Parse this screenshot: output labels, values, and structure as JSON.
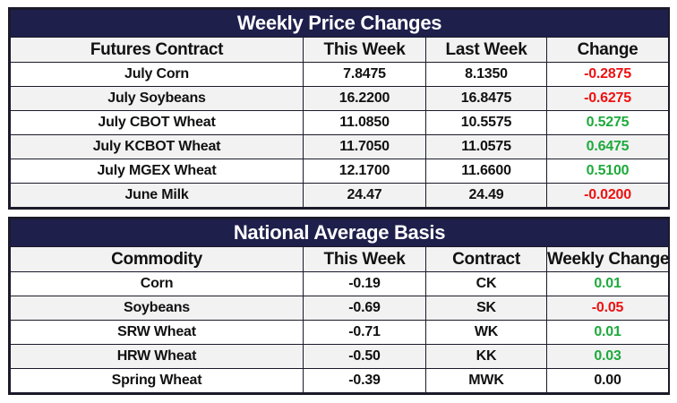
{
  "weekly_price_changes": {
    "title": "Weekly Price Changes",
    "headers": [
      "Futures Contract",
      "This Week",
      "Last Week",
      "Change"
    ],
    "rows": [
      {
        "contract": "July Corn",
        "this_week": "7.8475",
        "last_week": "8.1350",
        "change": "-0.2875",
        "trend": "neg"
      },
      {
        "contract": "July Soybeans",
        "this_week": "16.2200",
        "last_week": "16.8475",
        "change": "-0.6275",
        "trend": "neg"
      },
      {
        "contract": "July CBOT Wheat",
        "this_week": "11.0850",
        "last_week": "10.5575",
        "change": "0.5275",
        "trend": "pos"
      },
      {
        "contract": "July KCBOT Wheat",
        "this_week": "11.7050",
        "last_week": "11.0575",
        "change": "0.6475",
        "trend": "pos"
      },
      {
        "contract": "July MGEX Wheat",
        "this_week": "12.1700",
        "last_week": "11.6600",
        "change": "0.5100",
        "trend": "pos"
      },
      {
        "contract": "June Milk",
        "this_week": "24.47",
        "last_week": "24.49",
        "change": "-0.0200",
        "trend": "neg"
      }
    ]
  },
  "national_average_basis": {
    "title": "National Average Basis",
    "headers": [
      "Commodity",
      "This Week",
      "Contract",
      "Weekly Change"
    ],
    "rows": [
      {
        "commodity": "Corn",
        "this_week": "-0.19",
        "contract": "CK",
        "weekly_change": "0.01",
        "trend": "pos"
      },
      {
        "commodity": "Soybeans",
        "this_week": "-0.69",
        "contract": "SK",
        "weekly_change": "-0.05",
        "trend": "neg"
      },
      {
        "commodity": "SRW Wheat",
        "this_week": "-0.71",
        "contract": "WK",
        "weekly_change": "0.01",
        "trend": "pos"
      },
      {
        "commodity": "HRW Wheat",
        "this_week": "-0.50",
        "contract": "KK",
        "weekly_change": "0.03",
        "trend": "pos"
      },
      {
        "commodity": "Spring Wheat",
        "this_week": "-0.39",
        "contract": "MWK",
        "weekly_change": "0.00",
        "trend": "flat"
      }
    ]
  },
  "colors": {
    "header_bg": "#1e1f4b",
    "header_text": "#ffffff",
    "stripe_bg": "#f2f2f2",
    "negative": "#ee1111",
    "positive": "#1eaa3c",
    "neutral": "#111111"
  }
}
